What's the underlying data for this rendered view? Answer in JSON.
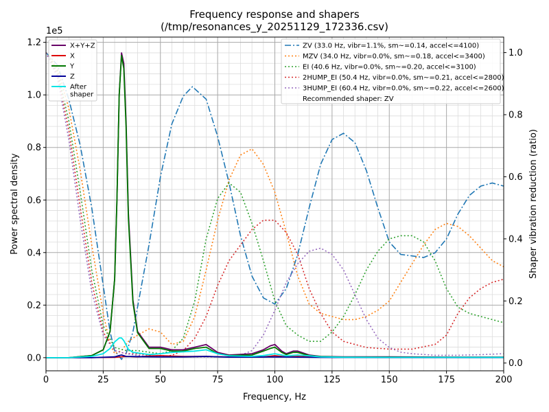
{
  "chart_data": {
    "type": "line",
    "title": "Frequency response and shapers",
    "subtitle": "(/tmp/resonances_y_20251129_172336.csv)",
    "xlabel": "Frequency, Hz",
    "ylabel": "Power spectral density",
    "ylabel_right": "Shaper vibration reduction (ratio)",
    "y_offset_label": "1e5",
    "xlim": [
      0,
      200
    ],
    "ylim": [
      -5000,
      122000
    ],
    "ylim_right": [
      -0.025,
      1.05
    ],
    "xticks": [
      "0",
      "25",
      "50",
      "75",
      "100",
      "125",
      "150",
      "175",
      "200"
    ],
    "yticks": [
      "0.0",
      "0.2",
      "0.4",
      "0.6",
      "0.8",
      "1.0",
      "1.2"
    ],
    "yticks_right": [
      "0.0",
      "0.2",
      "0.4",
      "0.6",
      "0.8",
      "1.0"
    ],
    "grid": true,
    "legend_left_position": "top-left",
    "legend_right_position": "top-right",
    "recommended_text": "Recommended shaper: ZV",
    "psd_series": [
      {
        "name": "X+Y+Z",
        "color": "#660066",
        "width": 1.8,
        "x": [
          0,
          10,
          20,
          25,
          28,
          30,
          31,
          32,
          33,
          34,
          35,
          36,
          38,
          40,
          45,
          50,
          55,
          60,
          65,
          70,
          75,
          80,
          90,
          95,
          98,
          100,
          103,
          105,
          108,
          110,
          115,
          120,
          130,
          150,
          175,
          200
        ],
        "y": [
          0,
          0,
          800,
          3000,
          10000,
          30000,
          60000,
          100000,
          116000,
          112000,
          90000,
          55000,
          22000,
          10000,
          4000,
          4000,
          3000,
          3000,
          4000,
          5000,
          2000,
          1000,
          1500,
          3000,
          4500,
          5000,
          2500,
          1500,
          2500,
          2500,
          1000,
          500,
          300,
          300,
          200,
          200
        ]
      },
      {
        "name": "X",
        "color": "#dd0000",
        "width": 1.5,
        "x": [
          0,
          20,
          30,
          35,
          40,
          45,
          50,
          60,
          70,
          80,
          95,
          100,
          105,
          110,
          120,
          150,
          200
        ],
        "y": [
          0,
          0,
          100,
          500,
          300,
          700,
          800,
          500,
          500,
          300,
          300,
          800,
          300,
          500,
          200,
          100,
          100
        ]
      },
      {
        "name": "Y",
        "color": "#007700",
        "width": 1.8,
        "x": [
          0,
          10,
          20,
          25,
          28,
          30,
          31,
          32,
          33,
          34,
          35,
          36,
          38,
          40,
          45,
          50,
          55,
          60,
          65,
          70,
          75,
          80,
          90,
          95,
          98,
          100,
          103,
          105,
          108,
          110,
          115,
          120,
          130,
          150,
          175,
          200
        ],
        "y": [
          0,
          0,
          800,
          3000,
          10000,
          30000,
          60000,
          100000,
          115000,
          110000,
          88000,
          53000,
          21000,
          9500,
          3500,
          3500,
          2500,
          2500,
          3500,
          4000,
          1500,
          800,
          1000,
          2500,
          3500,
          4000,
          2000,
          1200,
          2000,
          2000,
          800,
          400,
          200,
          200,
          150,
          150
        ]
      },
      {
        "name": "Z",
        "color": "#000099",
        "width": 1.8,
        "x": [
          0,
          20,
          30,
          32,
          33,
          35,
          40,
          50,
          60,
          70,
          80,
          90,
          100,
          110,
          120,
          150,
          200
        ],
        "y": [
          0,
          0,
          300,
          800,
          1000,
          500,
          400,
          300,
          300,
          500,
          200,
          200,
          300,
          200,
          100,
          50,
          50
        ]
      },
      {
        "name": "After\nshaper",
        "color": "#00e5e5",
        "width": 1.8,
        "x": [
          0,
          10,
          20,
          25,
          28,
          30,
          32,
          33,
          34,
          35,
          36,
          38,
          40,
          45,
          50,
          55,
          60,
          65,
          70,
          75,
          80,
          90,
          95,
          100,
          105,
          110,
          115,
          120,
          130,
          150,
          175,
          200
        ],
        "y": [
          0,
          0,
          500,
          1500,
          3500,
          6000,
          7500,
          7500,
          6500,
          4800,
          3200,
          2000,
          1800,
          1200,
          1500,
          2000,
          2200,
          2500,
          3000,
          1500,
          700,
          500,
          800,
          1500,
          700,
          1000,
          700,
          300,
          150,
          100,
          100,
          100
        ]
      }
    ],
    "shaper_series": [
      {
        "name": "ZV (33.0 Hz, vibr=1.1%, sm~=0.14, accel<=4100)",
        "color": "#1f77b4",
        "dash": "9,3,2,3",
        "x": [
          0,
          5,
          10,
          15,
          20,
          25,
          28,
          30,
          33,
          35,
          38,
          40,
          45,
          50,
          55,
          60,
          64,
          70,
          75,
          80,
          85,
          90,
          95,
          100,
          105,
          110,
          115,
          120,
          125,
          130,
          135,
          140,
          145,
          150,
          155,
          160,
          165,
          170,
          175,
          180,
          185,
          190,
          195,
          200
        ],
        "y": [
          1.0,
          0.96,
          0.85,
          0.7,
          0.5,
          0.25,
          0.1,
          0.04,
          0.012,
          0.03,
          0.1,
          0.18,
          0.38,
          0.6,
          0.77,
          0.86,
          0.89,
          0.85,
          0.73,
          0.58,
          0.41,
          0.28,
          0.21,
          0.19,
          0.24,
          0.35,
          0.5,
          0.64,
          0.72,
          0.74,
          0.71,
          0.62,
          0.5,
          0.39,
          0.35,
          0.345,
          0.34,
          0.355,
          0.4,
          0.48,
          0.54,
          0.57,
          0.58,
          0.57
        ]
      },
      {
        "name": "MZV (34.0 Hz, vibr=0.0%, sm~=0.18, accel<=3400)",
        "color": "#ff7f0e",
        "dash": "2,3",
        "x": [
          0,
          5,
          10,
          15,
          20,
          25,
          28,
          30,
          33,
          36,
          40,
          45,
          50,
          55,
          60,
          65,
          70,
          75,
          80,
          85,
          90,
          95,
          100,
          105,
          110,
          115,
          120,
          125,
          130,
          135,
          140,
          145,
          150,
          155,
          160,
          165,
          170,
          175,
          180,
          185,
          190,
          195,
          200
        ],
        "y": [
          1.0,
          0.95,
          0.82,
          0.62,
          0.38,
          0.16,
          0.06,
          0.03,
          0.04,
          0.07,
          0.09,
          0.11,
          0.1,
          0.06,
          0.07,
          0.15,
          0.3,
          0.46,
          0.59,
          0.67,
          0.69,
          0.64,
          0.55,
          0.42,
          0.28,
          0.19,
          0.16,
          0.15,
          0.14,
          0.14,
          0.15,
          0.17,
          0.2,
          0.26,
          0.32,
          0.38,
          0.43,
          0.45,
          0.44,
          0.41,
          0.37,
          0.33,
          0.31
        ]
      },
      {
        "name": "EI (40.6 Hz, vibr=0.0%, sm~=0.20, accel<=3100)",
        "color": "#2ca02c",
        "dash": "2,3",
        "x": [
          0,
          5,
          10,
          15,
          20,
          25,
          30,
          35,
          40,
          45,
          50,
          55,
          60,
          65,
          70,
          75,
          80,
          85,
          90,
          95,
          100,
          105,
          110,
          115,
          120,
          125,
          130,
          135,
          140,
          145,
          150,
          155,
          160,
          165,
          170,
          175,
          180,
          185,
          190,
          195,
          200
        ],
        "y": [
          1.0,
          0.94,
          0.78,
          0.55,
          0.3,
          0.12,
          0.05,
          0.04,
          0.04,
          0.035,
          0.03,
          0.04,
          0.08,
          0.2,
          0.4,
          0.53,
          0.58,
          0.55,
          0.45,
          0.33,
          0.2,
          0.12,
          0.09,
          0.07,
          0.07,
          0.1,
          0.15,
          0.22,
          0.3,
          0.36,
          0.4,
          0.41,
          0.41,
          0.39,
          0.33,
          0.24,
          0.18,
          0.16,
          0.15,
          0.14,
          0.13
        ]
      },
      {
        "name": "2HUMP_EI (50.4 Hz, vibr=0.0%, sm~=0.21, accel<=2800)",
        "color": "#d62728",
        "dash": "2,3",
        "x": [
          0,
          5,
          10,
          15,
          20,
          25,
          30,
          35,
          40,
          45,
          50,
          55,
          60,
          65,
          70,
          75,
          80,
          85,
          90,
          95,
          100,
          105,
          110,
          115,
          120,
          125,
          130,
          140,
          150,
          160,
          170,
          175,
          180,
          185,
          190,
          195,
          200
        ],
        "y": [
          1.0,
          0.93,
          0.75,
          0.5,
          0.26,
          0.1,
          0.04,
          0.03,
          0.03,
          0.025,
          0.02,
          0.025,
          0.04,
          0.08,
          0.15,
          0.25,
          0.33,
          0.38,
          0.43,
          0.46,
          0.46,
          0.42,
          0.35,
          0.24,
          0.16,
          0.1,
          0.07,
          0.05,
          0.045,
          0.045,
          0.06,
          0.09,
          0.16,
          0.21,
          0.24,
          0.26,
          0.27
        ]
      },
      {
        "name": "3HUMP_EI (60.4 Hz, vibr=0.0%, sm~=0.22, accel<=2600)",
        "color": "#9467bd",
        "dash": "2,3",
        "x": [
          0,
          5,
          10,
          15,
          20,
          25,
          30,
          35,
          40,
          45,
          50,
          55,
          60,
          65,
          70,
          75,
          80,
          85,
          90,
          95,
          100,
          105,
          110,
          115,
          120,
          125,
          130,
          135,
          140,
          145,
          150,
          155,
          160,
          170,
          180,
          190,
          200
        ],
        "y": [
          1.0,
          0.92,
          0.72,
          0.46,
          0.23,
          0.09,
          0.04,
          0.03,
          0.025,
          0.02,
          0.02,
          0.02,
          0.02,
          0.02,
          0.02,
          0.02,
          0.02,
          0.025,
          0.04,
          0.09,
          0.17,
          0.26,
          0.32,
          0.36,
          0.37,
          0.35,
          0.3,
          0.22,
          0.14,
          0.08,
          0.05,
          0.035,
          0.03,
          0.025,
          0.025,
          0.027,
          0.03
        ]
      }
    ]
  }
}
